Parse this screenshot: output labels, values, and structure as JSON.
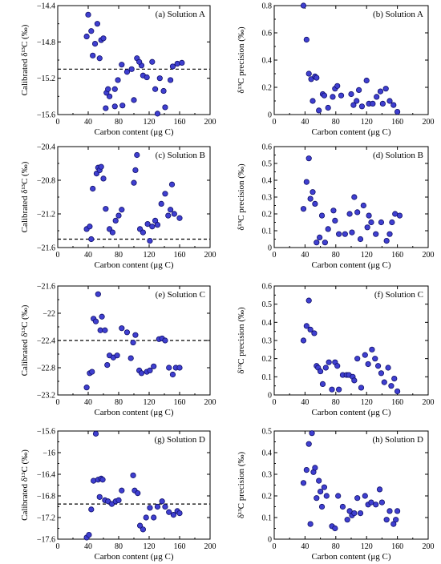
{
  "chart_data": [
    {
      "id": "a",
      "type": "scatter",
      "title": "(a) Solution A",
      "xlabel": "Carbon content (μg C)",
      "ylabel": "Calibrated δ¹³C (‰)",
      "xlim": [
        0,
        200
      ],
      "xticks": [
        0,
        40,
        80,
        120,
        160,
        200
      ],
      "ylim": [
        -15.6,
        -14.4
      ],
      "yticks": [
        -15.6,
        -15.2,
        -14.8,
        -14.4
      ],
      "ytick_labels": [
        "−15.6",
        "−15.2",
        "−14.8",
        "−14.4"
      ],
      "reference": -15.1,
      "points": [
        [
          40,
          -14.5
        ],
        [
          44,
          -14.68
        ],
        [
          38,
          -14.74
        ],
        [
          52,
          -14.6
        ],
        [
          57,
          -14.78
        ],
        [
          49,
          -14.82
        ],
        [
          55,
          -14.98
        ],
        [
          46,
          -14.95
        ],
        [
          60,
          -14.76
        ],
        [
          68,
          -15.4
        ],
        [
          64,
          -15.36
        ],
        [
          66,
          -15.32
        ],
        [
          75,
          -15.32
        ],
        [
          79,
          -15.22
        ],
        [
          84,
          -15.05
        ],
        [
          91,
          -15.13
        ],
        [
          97,
          -15.1
        ],
        [
          100,
          -15.44
        ],
        [
          104,
          -14.98
        ],
        [
          110,
          -15.06
        ],
        [
          107,
          -15.02
        ],
        [
          112,
          -15.17
        ],
        [
          117,
          -15.19
        ],
        [
          124,
          -15.02
        ],
        [
          128,
          -15.32
        ],
        [
          131,
          -15.59
        ],
        [
          134,
          -15.2
        ],
        [
          139,
          -15.34
        ],
        [
          141,
          -15.52
        ],
        [
          148,
          -15.22
        ],
        [
          151,
          -15.07
        ],
        [
          157,
          -15.04
        ],
        [
          163,
          -15.03
        ],
        [
          63,
          -15.53
        ],
        [
          85,
          -15.5
        ],
        [
          75,
          -15.51
        ]
      ]
    },
    {
      "id": "b",
      "type": "scatter",
      "title": "(b) Solution A",
      "xlabel": "Carbon content (μg C)",
      "ylabel": "δ¹³C precision (‰)",
      "xlim": [
        0,
        200
      ],
      "xticks": [
        0,
        40,
        80,
        120,
        160,
        200
      ],
      "ylim": [
        0,
        0.8
      ],
      "yticks": [
        0,
        0.2,
        0.4,
        0.6,
        0.8
      ],
      "ytick_labels": [
        "0",
        "0.2",
        "0.4",
        "0.6",
        "0.8"
      ],
      "points": [
        [
          38,
          0.8
        ],
        [
          42,
          0.55
        ],
        [
          45,
          0.3
        ],
        [
          48,
          0.26
        ],
        [
          50,
          0.1
        ],
        [
          53,
          0.28
        ],
        [
          55,
          0.27
        ],
        [
          58,
          0.03
        ],
        [
          63,
          0.15
        ],
        [
          65,
          0.14
        ],
        [
          70,
          0.05
        ],
        [
          76,
          0.13
        ],
        [
          79,
          0.19
        ],
        [
          82,
          0.21
        ],
        [
          87,
          0.14
        ],
        [
          100,
          0.15
        ],
        [
          103,
          0.07
        ],
        [
          107,
          0.1
        ],
        [
          110,
          0.18
        ],
        [
          114,
          0.06
        ],
        [
          120,
          0.25
        ],
        [
          123,
          0.08
        ],
        [
          128,
          0.08
        ],
        [
          133,
          0.13
        ],
        [
          138,
          0.17
        ],
        [
          141,
          0.08
        ],
        [
          145,
          0.19
        ],
        [
          150,
          0.1
        ],
        [
          155,
          0.07
        ],
        [
          160,
          0.02
        ]
      ]
    },
    {
      "id": "c",
      "type": "scatter",
      "title": "(c) Solution B",
      "xlabel": "Carbon content (μg C)",
      "ylabel": "Calibrated δ¹³C (‰)",
      "xlim": [
        0,
        200
      ],
      "xticks": [
        0,
        40,
        80,
        120,
        160,
        200
      ],
      "ylim": [
        -21.6,
        -20.4
      ],
      "yticks": [
        -21.6,
        -21.2,
        -20.8,
        -20.4
      ],
      "ytick_labels": [
        "−21.6",
        "−21.2",
        "−20.8",
        "−20.4"
      ],
      "reference": -21.5,
      "points": [
        [
          38,
          -21.38
        ],
        [
          42,
          -21.35
        ],
        [
          44,
          -21.5
        ],
        [
          46,
          -20.9
        ],
        [
          51,
          -20.72
        ],
        [
          53,
          -20.65
        ],
        [
          55,
          -20.68
        ],
        [
          57,
          -20.64
        ],
        [
          60,
          -20.78
        ],
        [
          63,
          -21.14
        ],
        [
          68,
          -21.38
        ],
        [
          72,
          -21.42
        ],
        [
          76,
          -21.28
        ],
        [
          80,
          -21.22
        ],
        [
          84,
          -21.15
        ],
        [
          100,
          -20.83
        ],
        [
          102,
          -20.68
        ],
        [
          104,
          -20.5
        ],
        [
          108,
          -21.38
        ],
        [
          112,
          -21.42
        ],
        [
          118,
          -21.32
        ],
        [
          121,
          -21.52
        ],
        [
          124,
          -21.35
        ],
        [
          128,
          -21.28
        ],
        [
          131,
          -21.33
        ],
        [
          136,
          -21.08
        ],
        [
          141,
          -20.96
        ],
        [
          145,
          -21.22
        ],
        [
          148,
          -21.15
        ],
        [
          150,
          -20.85
        ],
        [
          153,
          -21.2
        ],
        [
          160,
          -21.25
        ]
      ]
    },
    {
      "id": "d",
      "type": "scatter",
      "title": "(d) Solution B",
      "xlabel": "Carbon content (μg C)",
      "ylabel": "δ¹³C precision (‰)",
      "xlim": [
        0,
        200
      ],
      "xticks": [
        0,
        40,
        80,
        120,
        160,
        200
      ],
      "ylim": [
        0,
        0.6
      ],
      "yticks": [
        0,
        0.1,
        0.2,
        0.3,
        0.4,
        0.5,
        0.6
      ],
      "ytick_labels": [
        "0",
        "0.1",
        "0.2",
        "0.3",
        "0.4",
        "0.5",
        "0.6"
      ],
      "points": [
        [
          38,
          0.23
        ],
        [
          42,
          0.39
        ],
        [
          45,
          0.53
        ],
        [
          47,
          0.29
        ],
        [
          50,
          0.33
        ],
        [
          53,
          0.26
        ],
        [
          55,
          0.03
        ],
        [
          59,
          0.06
        ],
        [
          62,
          0.19
        ],
        [
          66,
          0.03
        ],
        [
          70,
          0.11
        ],
        [
          77,
          0.22
        ],
        [
          79,
          0.16
        ],
        [
          84,
          0.08
        ],
        [
          92,
          0.08
        ],
        [
          98,
          0.2
        ],
        [
          101,
          0.09
        ],
        [
          104,
          0.3
        ],
        [
          108,
          0.21
        ],
        [
          112,
          0.05
        ],
        [
          116,
          0.25
        ],
        [
          121,
          0.12
        ],
        [
          123,
          0.19
        ],
        [
          126,
          0.15
        ],
        [
          132,
          0.08
        ],
        [
          139,
          0.15
        ],
        [
          146,
          0.04
        ],
        [
          150,
          0.08
        ],
        [
          153,
          0.15
        ],
        [
          157,
          0.2
        ],
        [
          163,
          0.19
        ]
      ]
    },
    {
      "id": "e",
      "type": "scatter",
      "title": "(e) Solution C",
      "xlabel": "Carbon content (μg C)",
      "ylabel": "Calibrated δ¹³C (‰)",
      "xlim": [
        0,
        200
      ],
      "xticks": [
        0,
        40,
        80,
        120,
        160,
        200
      ],
      "ylim": [
        -23.2,
        -21.6
      ],
      "yticks": [
        -23.2,
        -22.8,
        -22.4,
        -22,
        -21.6
      ],
      "ytick_labels": [
        "−23.2",
        "−22.8",
        "−22.4",
        "−22",
        "−21.6"
      ],
      "reference": -22.4,
      "points": [
        [
          38,
          -23.09
        ],
        [
          42,
          -22.88
        ],
        [
          45,
          -22.86
        ],
        [
          47,
          -22.08
        ],
        [
          50,
          -22.12
        ],
        [
          53,
          -21.72
        ],
        [
          56,
          -22.25
        ],
        [
          58,
          -22.05
        ],
        [
          62,
          -22.25
        ],
        [
          65,
          -22.76
        ],
        [
          68,
          -22.62
        ],
        [
          73,
          -22.65
        ],
        [
          78,
          -22.62
        ],
        [
          84,
          -22.22
        ],
        [
          91,
          -22.28
        ],
        [
          96,
          -22.66
        ],
        [
          99,
          -22.43
        ],
        [
          102,
          -22.32
        ],
        [
          107,
          -22.84
        ],
        [
          110,
          -22.88
        ],
        [
          117,
          -22.86
        ],
        [
          121,
          -22.84
        ],
        [
          126,
          -22.78
        ],
        [
          133,
          -22.38
        ],
        [
          137,
          -22.37
        ],
        [
          141,
          -22.4
        ],
        [
          146,
          -22.8
        ],
        [
          151,
          -22.9
        ],
        [
          155,
          -22.8
        ],
        [
          160,
          -22.8
        ]
      ]
    },
    {
      "id": "f",
      "type": "scatter",
      "title": "(f) Solution C",
      "xlabel": "Carbon content (μg C)",
      "ylabel": "δ¹³C precision (‰)",
      "xlim": [
        0,
        200
      ],
      "xticks": [
        0,
        40,
        80,
        120,
        160,
        200
      ],
      "ylim": [
        0,
        0.6
      ],
      "yticks": [
        0,
        0.1,
        0.2,
        0.3,
        0.4,
        0.5,
        0.6
      ],
      "ytick_labels": [
        "0",
        "0.1",
        "0.2",
        "0.3",
        "0.4",
        "0.5",
        "0.6"
      ],
      "points": [
        [
          38,
          0.3
        ],
        [
          42,
          0.38
        ],
        [
          45,
          0.52
        ],
        [
          47,
          0.36
        ],
        [
          52,
          0.34
        ],
        [
          55,
          0.16
        ],
        [
          57,
          0.15
        ],
        [
          60,
          0.13
        ],
        [
          63,
          0.06
        ],
        [
          67,
          0.15
        ],
        [
          71,
          0.18
        ],
        [
          75,
          0.03
        ],
        [
          79,
          0.18
        ],
        [
          82,
          0.16
        ],
        [
          84,
          0.03
        ],
        [
          89,
          0.11
        ],
        [
          94,
          0.11
        ],
        [
          97,
          0.11
        ],
        [
          102,
          0.1
        ],
        [
          104,
          0.08
        ],
        [
          108,
          0.2
        ],
        [
          113,
          0.04
        ],
        [
          118,
          0.22
        ],
        [
          122,
          0.17
        ],
        [
          127,
          0.25
        ],
        [
          131,
          0.2
        ],
        [
          135,
          0.16
        ],
        [
          139,
          0.12
        ],
        [
          143,
          0.07
        ],
        [
          148,
          0.15
        ],
        [
          152,
          0.05
        ],
        [
          156,
          0.09
        ],
        [
          160,
          0.02
        ]
      ]
    },
    {
      "id": "g",
      "type": "scatter",
      "title": "(g) Solution D",
      "xlabel": "Carbon content (μg C)",
      "ylabel": "Calibrated δ¹³C (‰)",
      "xlim": [
        0,
        200
      ],
      "xticks": [
        0,
        40,
        80,
        120,
        160,
        200
      ],
      "ylim": [
        -17.6,
        -15.6
      ],
      "yticks": [
        -17.6,
        -17.2,
        -16.8,
        -16.4,
        -16,
        -15.6
      ],
      "ytick_labels": [
        "−17.6",
        "−17.2",
        "−16.8",
        "−16.4",
        "−16",
        "−15.6"
      ],
      "reference": -16.95,
      "points": [
        [
          38,
          -17.57
        ],
        [
          41,
          -17.52
        ],
        [
          44,
          -17.05
        ],
        [
          47,
          -16.52
        ],
        [
          50,
          -15.65
        ],
        [
          53,
          -16.5
        ],
        [
          55,
          -16.82
        ],
        [
          57,
          -16.48
        ],
        [
          59,
          -16.5
        ],
        [
          62,
          -16.88
        ],
        [
          66,
          -16.9
        ],
        [
          71,
          -16.95
        ],
        [
          76,
          -16.9
        ],
        [
          80,
          -16.88
        ],
        [
          84,
          -16.7
        ],
        [
          99,
          -16.42
        ],
        [
          101,
          -16.7
        ],
        [
          105,
          -16.75
        ],
        [
          108,
          -17.35
        ],
        [
          112,
          -17.42
        ],
        [
          116,
          -17.2
        ],
        [
          121,
          -17.02
        ],
        [
          126,
          -17.2
        ],
        [
          131,
          -17.0
        ],
        [
          137,
          -16.9
        ],
        [
          141,
          -17.0
        ],
        [
          146,
          -17.1
        ],
        [
          152,
          -17.15
        ],
        [
          157,
          -17.08
        ],
        [
          160,
          -17.12
        ]
      ]
    },
    {
      "id": "h",
      "type": "scatter",
      "title": "(h) Solution D",
      "xlabel": "Carbon content (μg C)",
      "ylabel": "δ¹³C precision (‰)",
      "xlim": [
        0,
        200
      ],
      "xticks": [
        0,
        40,
        80,
        120,
        160,
        200
      ],
      "ylim": [
        0,
        0.5
      ],
      "yticks": [
        0,
        0.1,
        0.2,
        0.3,
        0.4,
        0.5
      ],
      "ytick_labels": [
        "0",
        "0.1",
        "0.2",
        "0.3",
        "0.4",
        "0.5"
      ],
      "points": [
        [
          38,
          0.26
        ],
        [
          42,
          0.32
        ],
        [
          45,
          0.44
        ],
        [
          47,
          0.07
        ],
        [
          49,
          0.49
        ],
        [
          51,
          0.31
        ],
        [
          53,
          0.33
        ],
        [
          55,
          0.19
        ],
        [
          58,
          0.27
        ],
        [
          60,
          0.22
        ],
        [
          62,
          0.15
        ],
        [
          65,
          0.24
        ],
        [
          68,
          0.2
        ],
        [
          75,
          0.06
        ],
        [
          79,
          0.05
        ],
        [
          83,
          0.2
        ],
        [
          89,
          0.15
        ],
        [
          95,
          0.09
        ],
        [
          98,
          0.13
        ],
        [
          101,
          0.11
        ],
        [
          104,
          0.12
        ],
        [
          108,
          0.19
        ],
        [
          112,
          0.12
        ],
        [
          118,
          0.2
        ],
        [
          122,
          0.16
        ],
        [
          126,
          0.17
        ],
        [
          132,
          0.16
        ],
        [
          137,
          0.23
        ],
        [
          140,
          0.17
        ],
        [
          146,
          0.09
        ],
        [
          150,
          0.13
        ],
        [
          155,
          0.07
        ],
        [
          158,
          0.09
        ],
        [
          160,
          0.13
        ]
      ]
    }
  ]
}
